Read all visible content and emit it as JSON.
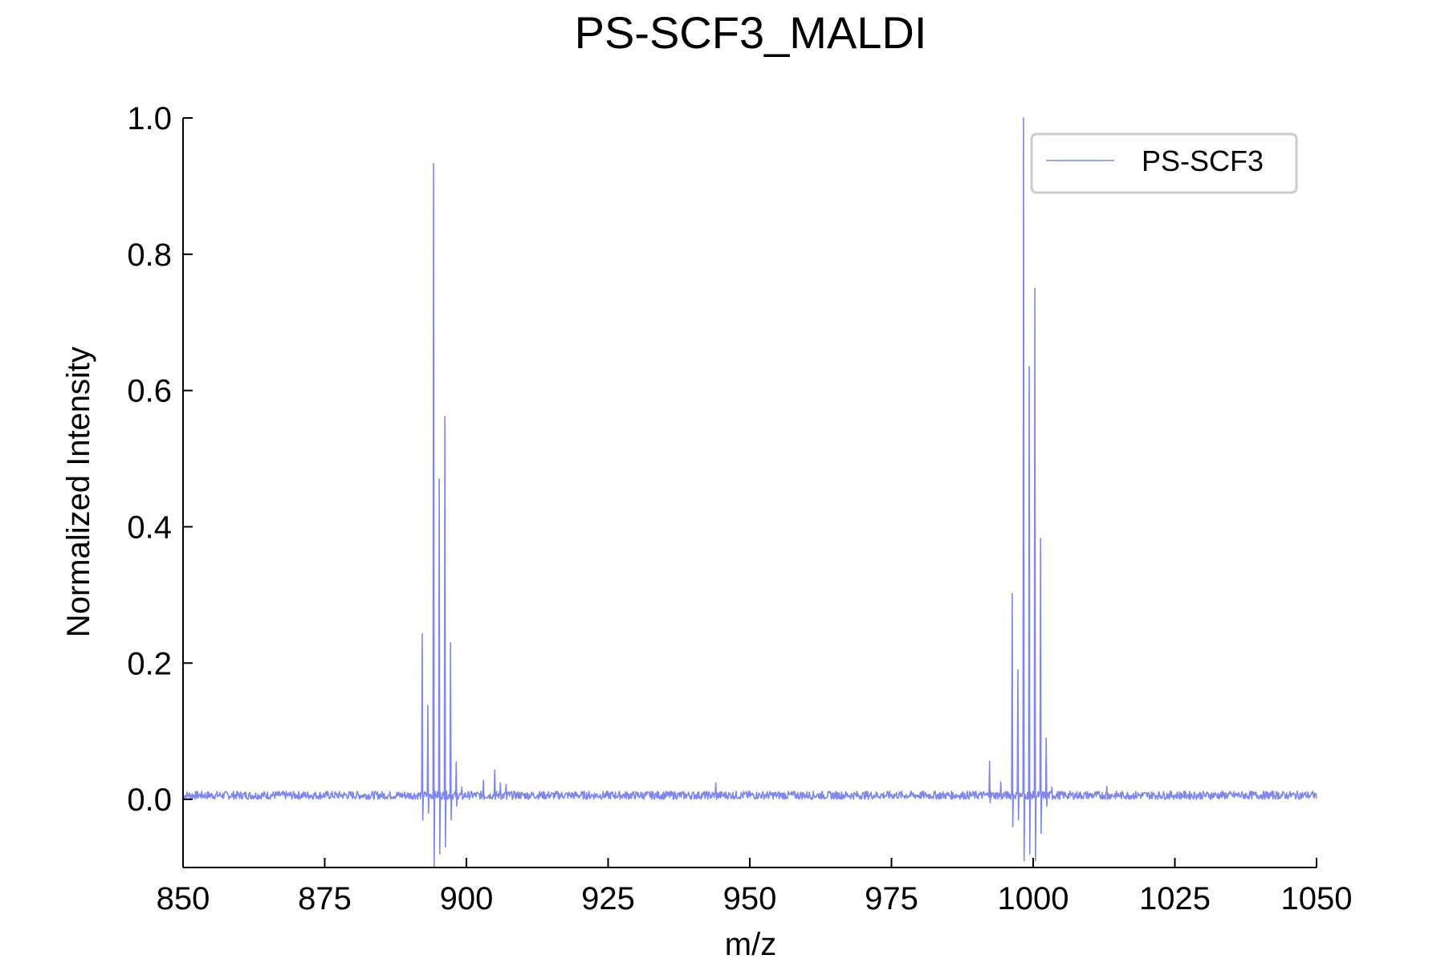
{
  "chart_data": {
    "type": "line",
    "title": "PS-SCF3_MALDI",
    "xlabel": "m/z",
    "ylabel": "Normalized Intensity",
    "xlim": [
      850,
      1050
    ],
    "ylim": [
      -0.1,
      1.0
    ],
    "xticks": [
      850,
      875,
      900,
      925,
      950,
      975,
      1000,
      1025,
      1050
    ],
    "xtick_labels": [
      "850",
      "875",
      "900",
      "925",
      "950",
      "975",
      "1000",
      "1025",
      "1050"
    ],
    "yticks": [
      0.0,
      0.2,
      0.4,
      0.6,
      0.8,
      1.0
    ],
    "ytick_labels": [
      "0.0",
      "0.2",
      "0.4",
      "0.6",
      "0.8",
      "1.0"
    ],
    "grid": false,
    "legend_position": "top-right",
    "colors": {
      "series": "#7f86f0",
      "axis": "#000000",
      "legend_border": "#cccccc"
    },
    "series": [
      {
        "name": "PS-SCF3",
        "baseline": 0.006,
        "peaks": [
          {
            "mz": 892.2,
            "intensity": 0.243,
            "undershoot": -0.03
          },
          {
            "mz": 893.2,
            "intensity": 0.138,
            "undershoot": -0.02
          },
          {
            "mz": 894.2,
            "intensity": 0.933,
            "undershoot": -0.12
          },
          {
            "mz": 895.2,
            "intensity": 0.47,
            "undershoot": -0.08
          },
          {
            "mz": 896.2,
            "intensity": 0.562,
            "undershoot": -0.07
          },
          {
            "mz": 897.2,
            "intensity": 0.23,
            "undershoot": -0.03
          },
          {
            "mz": 898.2,
            "intensity": 0.055,
            "undershoot": -0.01
          },
          {
            "mz": 899.2,
            "intensity": 0.018,
            "undershoot": 0.0
          },
          {
            "mz": 903.0,
            "intensity": 0.028,
            "undershoot": 0.0
          },
          {
            "mz": 905.0,
            "intensity": 0.043,
            "undershoot": 0.0
          },
          {
            "mz": 906.0,
            "intensity": 0.024,
            "undershoot": 0.0
          },
          {
            "mz": 907.0,
            "intensity": 0.022,
            "undershoot": 0.0
          },
          {
            "mz": 944.0,
            "intensity": 0.024,
            "undershoot": 0.0
          },
          {
            "mz": 992.3,
            "intensity": 0.056,
            "undershoot": -0.005
          },
          {
            "mz": 994.3,
            "intensity": 0.025,
            "undershoot": 0.0
          },
          {
            "mz": 996.3,
            "intensity": 0.302,
            "undershoot": -0.04
          },
          {
            "mz": 997.3,
            "intensity": 0.19,
            "undershoot": -0.03
          },
          {
            "mz": 998.3,
            "intensity": 1.0,
            "undershoot": -0.09
          },
          {
            "mz": 999.3,
            "intensity": 0.635,
            "undershoot": -0.08
          },
          {
            "mz": 1000.3,
            "intensity": 0.75,
            "undershoot": -0.09
          },
          {
            "mz": 1001.3,
            "intensity": 0.383,
            "undershoot": -0.05
          },
          {
            "mz": 1002.3,
            "intensity": 0.09,
            "undershoot": -0.01
          },
          {
            "mz": 1003.3,
            "intensity": 0.018,
            "undershoot": 0.0
          },
          {
            "mz": 1013.0,
            "intensity": 0.019,
            "undershoot": 0.0
          }
        ]
      }
    ]
  }
}
